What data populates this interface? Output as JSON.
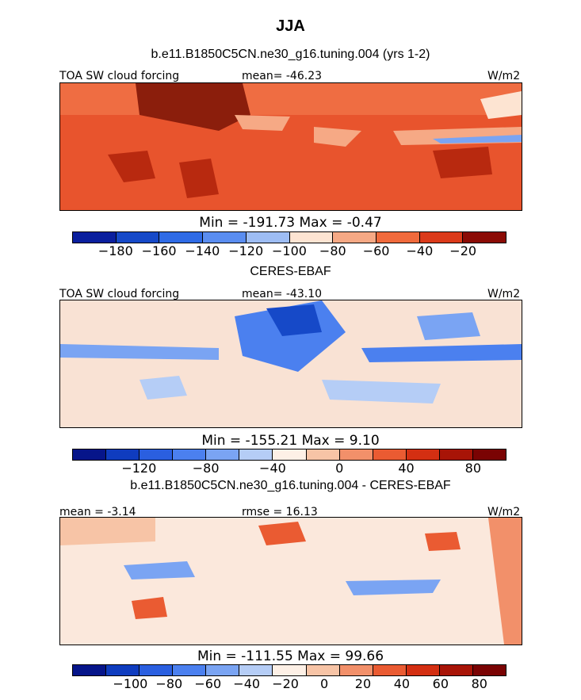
{
  "figure": {
    "season": "JJA",
    "model_title": "b.e11.B1850C5CN.ne30_g16.tuning.004 (yrs 1-2)",
    "obs_title": "CERES-EBAF",
    "diff_title": "b.e11.B1850C5CN.ne30_g16.tuning.004 - CERES-EBAF"
  },
  "chart_data": [
    {
      "type": "heatmap",
      "panel": "model",
      "variable_label": "TOA SW cloud forcing",
      "units": "W/m2",
      "mean_text": "mean= -46.23",
      "stats_text": "Min = -191.73 Max =  -0.47",
      "colorbar_ticks": [
        "-180",
        "-160",
        "-140",
        "-120",
        "-100",
        "-80",
        "-60",
        "-40",
        "-20"
      ],
      "colorbar_colors": [
        "#0a1f9e",
        "#1649c8",
        "#2f6be6",
        "#5a8df0",
        "#9ebdf4",
        "#fde4d2",
        "#f6a985",
        "#f06a3c",
        "#db3a1a",
        "#8b0b05"
      ]
    },
    {
      "type": "heatmap",
      "panel": "obs",
      "variable_label": "TOA SW cloud forcing",
      "units": "W/m2",
      "mean_text": "mean= -43.10",
      "stats_text": "Min = -155.21 Max =  9.10",
      "colorbar_ticks": [
        "-120",
        "-80",
        "-40",
        "0",
        "40",
        "80"
      ],
      "colorbar_colors": [
        "#06158a",
        "#0f3cbf",
        "#2a5fe0",
        "#4b80ef",
        "#7aa4f3",
        "#b5cdf6",
        "#fdf0e6",
        "#f7c4a6",
        "#f2906a",
        "#ea5b32",
        "#d42f12",
        "#a81407",
        "#7a0303"
      ]
    },
    {
      "type": "heatmap",
      "panel": "difference",
      "variable_label": "mean = -3.14",
      "units": "W/m2",
      "mean_text": "rmse = 16.13",
      "stats_text": "Min = -111.55 Max = 99.66",
      "colorbar_ticks": [
        "-100",
        "-80",
        "-60",
        "-40",
        "-20",
        "0",
        "20",
        "40",
        "60",
        "80"
      ],
      "colorbar_colors": [
        "#06158a",
        "#0f3cbf",
        "#2a5fe0",
        "#4b80ef",
        "#7aa4f3",
        "#b5cdf6",
        "#fdf0e6",
        "#f7c4a6",
        "#f2906a",
        "#ea5b32",
        "#d42f12",
        "#a81407",
        "#7a0303"
      ]
    }
  ]
}
